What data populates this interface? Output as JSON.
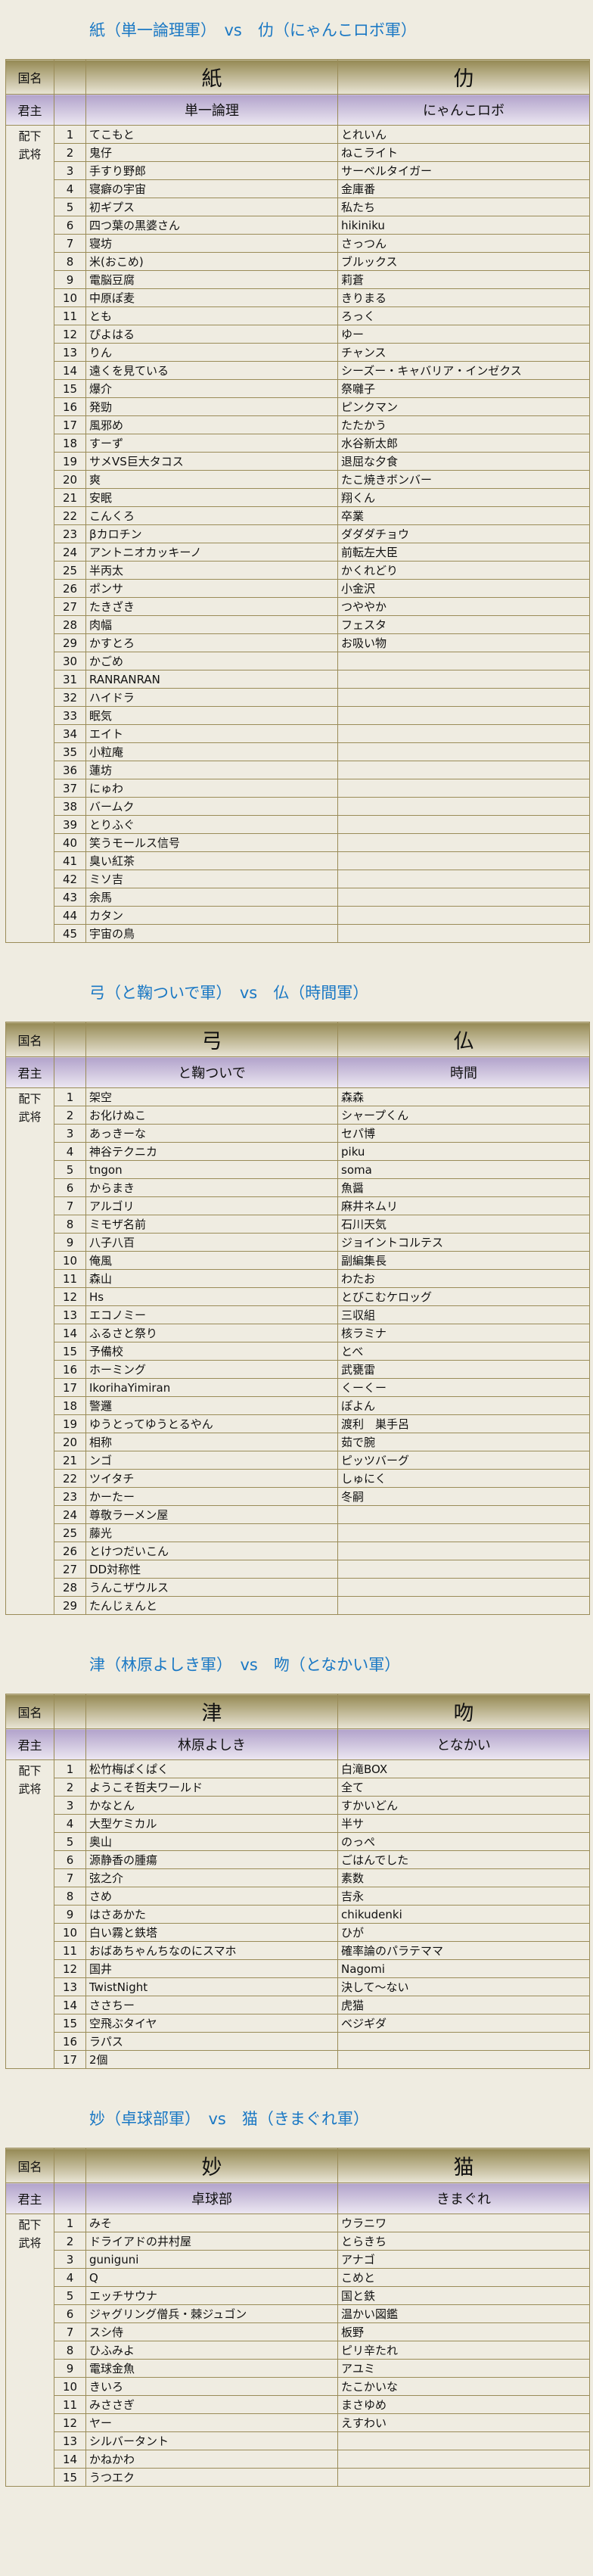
{
  "labels": {
    "nation": "国名",
    "lord": "君主",
    "subordinates": "配下武将"
  },
  "battles": [
    {
      "title": "紙（単一論理軍）　vs　仂（にゃんこロボ軍）",
      "left": {
        "nation": "紙",
        "lord": "単一論理",
        "members": [
          "てこもと",
          "鬼仔",
          "手すり野郎",
          "寝癖の宇宙",
          "初ギプス",
          "四つ葉の黒婆さん",
          "寝坊",
          "米(おこめ)",
          "電脳豆腐",
          "中原ぽ麦",
          "とも",
          "ぴよはる",
          "りん",
          "遠くを見ている",
          "爆介",
          "発勁",
          "風邪め",
          "すーず",
          "サメVS巨大タコス",
          "爽",
          "安眠",
          "こんくろ",
          "βカロチン",
          "アントニオカッキーノ",
          "半丙太",
          "ポンサ",
          "たきざき",
          "肉幅",
          "かすとろ",
          "かごめ",
          "RANRANRAN",
          "ハイドラ",
          "眠気",
          "エイト",
          "小粒庵",
          "蓮坊",
          "にゅわ",
          "バームク",
          "とりふぐ",
          "笑うモールス信号",
          "臭い紅茶",
          "ミソ吉",
          "余馬",
          "カタン",
          "宇宙の鳥"
        ]
      },
      "right": {
        "nation": "仂",
        "lord": "にゃんこロボ",
        "members": [
          "とれいん",
          "ねこライト",
          "サーベルタイガー",
          "金庫番",
          "私たち",
          "hikiniku",
          "さっつん",
          "ブルックス",
          "莉蒼",
          "きりまる",
          "ろっく",
          "ゆー",
          "チャンス",
          "シーズー・キャバリア・インゼクス",
          "祭囃子",
          "ピンクマン",
          "たたかう",
          "水谷新太郎",
          "退屈な夕食",
          "たこ焼きボンバー",
          "翔くん",
          "卒業",
          "ダダダチョウ",
          "前転左大臣",
          "かくれどり",
          "小金沢",
          "つややか",
          "フェスタ",
          "お吸い物"
        ]
      }
    },
    {
      "title": "弓（と鞠ついで軍）　vs　仏（時間軍）",
      "left": {
        "nation": "弓",
        "lord": "と鞠ついで",
        "members": [
          "架空",
          "お化けぬこ",
          "あっきーな",
          "神谷テクニカ",
          "tngon",
          "からまき",
          "アルゴリ",
          "ミモザ名前",
          "八子八百",
          "俺風",
          "森山",
          "Hs",
          "エコノミー",
          "ふるさと祭り",
          "予備校",
          "ホーミング",
          "IkorihaYimiran",
          "警邏",
          "ゆうとってゆうとるやん",
          "相称",
          "ンゴ",
          "ツイタチ",
          "かーたー",
          "尊敬ラーメン屋",
          "藤光",
          "とけつだいこん",
          "DD対称性",
          "うんこザウルス",
          "たんじぇんと"
        ]
      },
      "right": {
        "nation": "仏",
        "lord": "時間",
        "members": [
          "森森",
          "シャープくん",
          "セパ博",
          "piku",
          "soma",
          "魚醤",
          "麻井ネムリ",
          "石川天気",
          "ジョイントコルテス",
          "副編集長",
          "わたお",
          "とびこむケロッグ",
          "三収組",
          "核ラミナ",
          "とべ",
          "武甕雷",
          "くーくー",
          "ぽよん",
          "渡利　巣手呂",
          "茹で腕",
          "ピッツバーグ",
          "しゅにく",
          "冬嗣"
        ]
      }
    },
    {
      "title": "津（林原よしき軍）　vs　吻（となかい軍）",
      "left": {
        "nation": "津",
        "lord": "林原よしき",
        "members": [
          "松竹梅ぱくぱく",
          "ようこそ哲夫ワールド",
          "かなとん",
          "大型ケミカル",
          "奥山",
          "源静香の腫瘍",
          "弦之介",
          "さめ",
          "はさあかた",
          "白い霧と鉄塔",
          "おばあちゃんちなのにスマホ",
          "国井",
          "TwistNight",
          "ささちー",
          "空飛ぶタイヤ",
          "ラパス",
          "2個"
        ]
      },
      "right": {
        "nation": "吻",
        "lord": "となかい",
        "members": [
          "白滝BOX",
          "全て",
          "すかいどん",
          "半サ",
          "のっぺ",
          "ごはんでした",
          "素数",
          "吉永",
          "chikudenki",
          "ひが",
          "確率論のパラテママ",
          "Nagomi",
          "決して～ない",
          "虎猫",
          "ベジギダ"
        ]
      }
    },
    {
      "title": "妙（卓球部軍）　vs　猫（きまぐれ軍）",
      "left": {
        "nation": "妙",
        "lord": "卓球部",
        "members": [
          "みそ",
          "ドライアドの井村屋",
          "guniguni",
          "Q",
          "エッチサウナ",
          "ジャグリング僧兵・棘ジュゴン",
          "スシ侍",
          "ひふみよ",
          "電球金魚",
          "きいろ",
          "みささぎ",
          "ヤー",
          "シルバータント",
          "かねかわ",
          "うつエク"
        ]
      },
      "right": {
        "nation": "猫",
        "lord": "きまぐれ",
        "members": [
          "ウラニワ",
          "とらきち",
          "アナゴ",
          "こめと",
          "国と鉄",
          "温かい図鑑",
          "板野",
          "ピリ辛たれ",
          "アユミ",
          "たこかいな",
          "まさゆめ",
          "えすわい"
        ]
      }
    }
  ]
}
